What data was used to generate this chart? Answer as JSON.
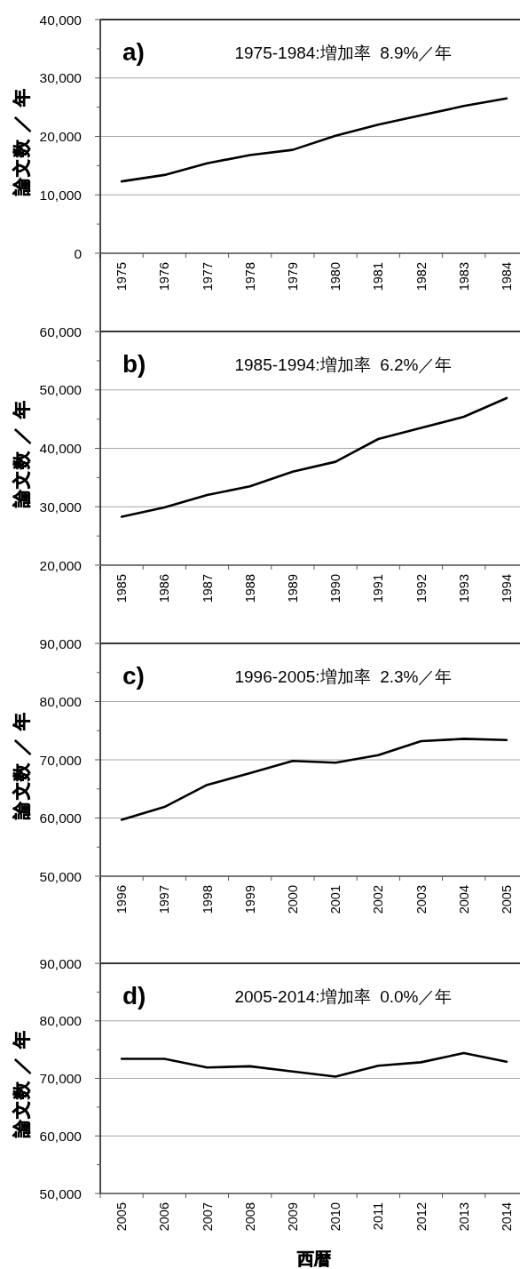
{
  "chart_data": [
    {
      "type": "line",
      "title": "a)",
      "annotations": [
        "1975-1984:増加率  8.9%／年"
      ],
      "ylabel": "論文数 ／ 年",
      "categories": [
        "1975",
        "1976",
        "1977",
        "1978",
        "1979",
        "1980",
        "1981",
        "1982",
        "1983",
        "1984"
      ],
      "values": [
        12300,
        13400,
        15400,
        16800,
        17700,
        20100,
        22000,
        23600,
        25200,
        26500
      ],
      "color": "#000000",
      "line_style": "solid",
      "ylim": [
        0,
        40000
      ],
      "yticks": [
        0,
        {
          "value": 5000,
          "label": null
        },
        {
          "value": 10000,
          "label": "10,000"
        },
        {
          "value": 15000,
          "label": null
        },
        {
          "value": 20000,
          "label": "20,000"
        },
        {
          "value": 25000,
          "label": null
        },
        {
          "value": 30000,
          "label": "30,000"
        },
        {
          "value": 35000,
          "label": null
        },
        {
          "value": 40000,
          "label": "40,000"
        }
      ],
      "grid": "y"
    },
    {
      "type": "line",
      "title": "b)",
      "annotations": [
        "1985-1994:増加率  6.2%／年"
      ],
      "ylabel": "論文数 ／ 年",
      "categories": [
        "1985",
        "1986",
        "1987",
        "1988",
        "1989",
        "1990",
        "1991",
        "1992",
        "1993",
        "1994"
      ],
      "values": [
        28300,
        29900,
        32000,
        33500,
        36000,
        37700,
        41600,
        43500,
        45400,
        48600
      ],
      "color": "#000000",
      "line_style": "solid",
      "ylim": [
        20000,
        60000
      ],
      "yticks": [
        {
          "value": 20000,
          "label": "20,000"
        },
        {
          "value": 25000,
          "label": null
        },
        {
          "value": 30000,
          "label": "30,000"
        },
        {
          "value": 35000,
          "label": null
        },
        {
          "value": 40000,
          "label": "40,000"
        },
        {
          "value": 45000,
          "label": null
        },
        {
          "value": 50000,
          "label": "50,000"
        },
        {
          "value": 55000,
          "label": null
        },
        {
          "value": 60000,
          "label": "60,000"
        }
      ],
      "grid": "y"
    },
    {
      "type": "line",
      "title": "c)",
      "annotations": [
        "1996-2005:増加率  2.3%／年"
      ],
      "ylabel": "論文数 ／ 年",
      "categories": [
        "1996",
        "1997",
        "1998",
        "1999",
        "2000",
        "2001",
        "2002",
        "2003",
        "2004",
        "2005"
      ],
      "values": [
        59700,
        61900,
        65700,
        67700,
        69800,
        69500,
        70800,
        73200,
        73600,
        73400
      ],
      "color": "#000000",
      "line_style": "solid",
      "ylim": [
        50000,
        90000
      ],
      "yticks": [
        {
          "value": 50000,
          "label": "50,000"
        },
        {
          "value": 55000,
          "label": null
        },
        {
          "value": 60000,
          "label": "60,000"
        },
        {
          "value": 65000,
          "label": null
        },
        {
          "value": 70000,
          "label": "70,000"
        },
        {
          "value": 75000,
          "label": null
        },
        {
          "value": 80000,
          "label": "80,000"
        },
        {
          "value": 85000,
          "label": null
        },
        {
          "value": 90000,
          "label": "90,000"
        }
      ],
      "grid": "y"
    },
    {
      "type": "line",
      "title": "d)",
      "annotations": [
        "2005-2014:増加率  0.0%／年"
      ],
      "ylabel": "論文数 ／ 年",
      "xlabel": "西暦",
      "categories": [
        "2005",
        "2006",
        "2007",
        "2008",
        "2009",
        "2010",
        "2011",
        "2012",
        "2013",
        "2014"
      ],
      "values": [
        73400,
        73400,
        71900,
        72100,
        71200,
        70300,
        72200,
        72800,
        74400,
        72900
      ],
      "color": "#000000",
      "line_style": "solid",
      "ylim": [
        50000,
        90000
      ],
      "yticks": [
        {
          "value": 50000,
          "label": "50,000"
        },
        {
          "value": 55000,
          "label": null
        },
        {
          "value": 60000,
          "label": "60,000"
        },
        {
          "value": 65000,
          "label": null
        },
        {
          "value": 70000,
          "label": "70,000"
        },
        {
          "value": 75000,
          "label": null
        },
        {
          "value": 80000,
          "label": "80,000"
        },
        {
          "value": 85000,
          "label": null
        },
        {
          "value": 90000,
          "label": "90,000"
        }
      ],
      "grid": "y"
    }
  ]
}
